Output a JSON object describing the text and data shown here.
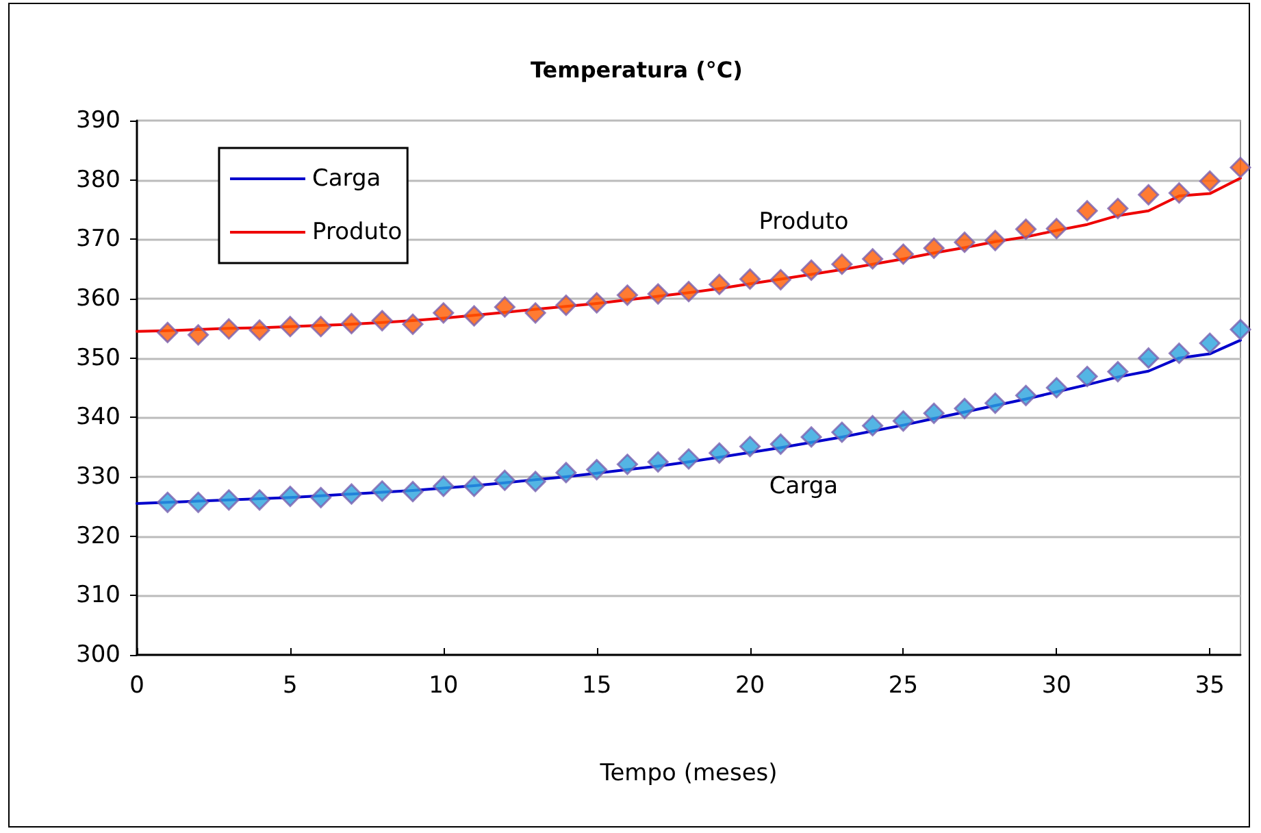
{
  "chart_data": {
    "type": "line",
    "title": "Temperatura (°C)",
    "xlabel": "Tempo (meses)",
    "xlim": [
      0,
      36
    ],
    "xticks": [
      0,
      5,
      10,
      15,
      20,
      25,
      30,
      35
    ],
    "ylim": [
      300,
      390
    ],
    "yticks": [
      300,
      310,
      320,
      330,
      340,
      350,
      360,
      370,
      380,
      390
    ],
    "grid": "y",
    "legend": "top left",
    "annotations": [
      "Produto",
      "Carga"
    ],
    "series": [
      {
        "name": "Carga",
        "marker": "none",
        "color": "#0000cc",
        "x": [
          0,
          1,
          2,
          3,
          4,
          5,
          6,
          7,
          8,
          9,
          10,
          11,
          12,
          13,
          14,
          15,
          16,
          17,
          18,
          19,
          20,
          21,
          22,
          23,
          24,
          25,
          26,
          27,
          28,
          29,
          30,
          31,
          32,
          33,
          34,
          35,
          36
        ],
        "values": [
          325.5,
          325.7,
          325.9,
          326.1,
          326.3,
          326.5,
          326.8,
          327.1,
          327.4,
          327.7,
          328.1,
          328.5,
          329,
          329.5,
          330,
          330.6,
          331.2,
          331.8,
          332.5,
          333.3,
          334.1,
          334.9,
          335.8,
          336.7,
          337.7,
          338.7,
          339.8,
          340.9,
          342,
          343.1,
          344.3,
          345.5,
          346.8,
          347.8,
          350,
          350.7,
          353
        ]
      },
      {
        "name": "Produto",
        "marker": "none",
        "color": "#ee0000",
        "x": [
          0,
          1,
          2,
          3,
          4,
          5,
          6,
          7,
          8,
          9,
          10,
          11,
          12,
          13,
          14,
          15,
          16,
          17,
          18,
          19,
          20,
          21,
          22,
          23,
          24,
          25,
          26,
          27,
          28,
          29,
          30,
          31,
          32,
          33,
          34,
          35,
          36
        ],
        "values": [
          354.5,
          354.6,
          354.8,
          355,
          355.1,
          355.3,
          355.5,
          355.7,
          356,
          356.3,
          356.7,
          357.2,
          357.7,
          358.2,
          358.7,
          359.2,
          359.8,
          360.4,
          361,
          361.7,
          362.5,
          363.3,
          364.1,
          364.9,
          365.8,
          366.7,
          367.7,
          368.6,
          369.6,
          370.4,
          371.5,
          372.5,
          374,
          374.8,
          377.3,
          377.7,
          380.3
        ]
      },
      {
        "type": "scatter",
        "marker": "diamond",
        "color": "#29a3dd",
        "x": [
          1,
          2,
          3,
          4,
          5,
          6,
          7,
          8,
          9,
          10,
          11,
          12,
          13,
          14,
          15,
          16,
          17,
          18,
          19,
          20,
          21,
          22,
          23,
          24,
          25,
          26,
          27,
          28,
          29,
          30,
          31,
          32,
          33,
          34,
          35,
          36
        ],
        "values": [
          325.7,
          325.7,
          326.1,
          326.1,
          326.7,
          326.5,
          327.1,
          327.6,
          327.5,
          328.4,
          328.4,
          329.4,
          329.2,
          330.7,
          331.2,
          332.1,
          332.5,
          333,
          334,
          335.1,
          335.5,
          336.7,
          337.5,
          338.6,
          339.4,
          340.7,
          341.5,
          342.4,
          343.7,
          345,
          346.9,
          347.7,
          350,
          350.8,
          352.5,
          354.8
        ]
      },
      {
        "type": "scatter",
        "marker": "diamond",
        "color": "#ff5a00",
        "x": [
          1,
          2,
          3,
          4,
          5,
          6,
          7,
          8,
          9,
          10,
          11,
          12,
          13,
          14,
          15,
          16,
          17,
          18,
          19,
          20,
          21,
          22,
          23,
          24,
          25,
          26,
          27,
          28,
          29,
          30,
          31,
          32,
          33,
          34,
          35,
          36
        ],
        "values": [
          354.3,
          353.9,
          354.9,
          354.7,
          355.3,
          355.3,
          355.8,
          356.3,
          355.7,
          357.6,
          357.1,
          358.6,
          357.6,
          358.9,
          359.3,
          360.6,
          360.8,
          361.2,
          362.4,
          363.3,
          363.2,
          364.8,
          365.8,
          366.7,
          367.5,
          368.5,
          369.5,
          369.8,
          371.7,
          371.8,
          374.8,
          375.2,
          377.5,
          377.8,
          379.8,
          382.1
        ]
      }
    ]
  }
}
